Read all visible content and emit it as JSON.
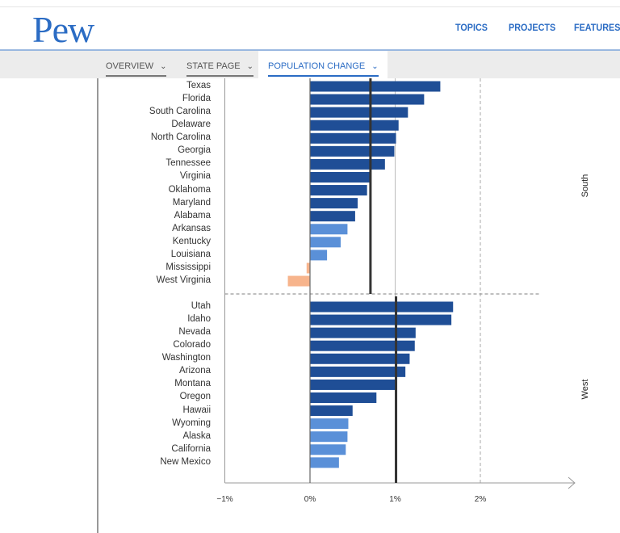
{
  "header": {
    "logo": "Pew",
    "nav": [
      "TOPICS",
      "PROJECTS",
      "FEATURES"
    ]
  },
  "subnav": {
    "tabs": [
      {
        "label": "OVERVIEW"
      },
      {
        "label": "STATE PAGE"
      },
      {
        "label": "POPULATION CHANGE",
        "active": true
      }
    ]
  },
  "colors": {
    "dark": "#1f4e96",
    "light": "#5a90d8",
    "negative": "#f7b48c",
    "accent": "#2b6cc4"
  },
  "chart_data": {
    "type": "bar",
    "orientation": "horizontal",
    "xlim": [
      -1,
      2.8
    ],
    "ticks": [
      {
        "v": -1,
        "label": "−1%"
      },
      {
        "v": 0,
        "label": "0%"
      },
      {
        "v": 1,
        "label": "1%"
      },
      {
        "v": 2,
        "label": "2%"
      }
    ],
    "groups": [
      {
        "name": "South",
        "average": 0.71,
        "states": [
          {
            "name": "Texas",
            "value": 1.53,
            "shade": "dark"
          },
          {
            "name": "Florida",
            "value": 1.34,
            "shade": "dark"
          },
          {
            "name": "South Carolina",
            "value": 1.15,
            "shade": "dark"
          },
          {
            "name": "Delaware",
            "value": 1.04,
            "shade": "dark"
          },
          {
            "name": "North Carolina",
            "value": 1.01,
            "shade": "dark"
          },
          {
            "name": "Georgia",
            "value": 0.99,
            "shade": "dark"
          },
          {
            "name": "Tennessee",
            "value": 0.88,
            "shade": "dark"
          },
          {
            "name": "Virginia",
            "value": 0.71,
            "shade": "dark"
          },
          {
            "name": "Oklahoma",
            "value": 0.67,
            "shade": "dark"
          },
          {
            "name": "Maryland",
            "value": 0.56,
            "shade": "dark"
          },
          {
            "name": "Alabama",
            "value": 0.53,
            "shade": "dark"
          },
          {
            "name": "Arkansas",
            "value": 0.44,
            "shade": "light"
          },
          {
            "name": "Kentucky",
            "value": 0.36,
            "shade": "light"
          },
          {
            "name": "Louisiana",
            "value": 0.2,
            "shade": "light"
          },
          {
            "name": "Mississippi",
            "value": -0.04,
            "shade": "negative"
          },
          {
            "name": "West Virginia",
            "value": -0.26,
            "shade": "negative"
          }
        ]
      },
      {
        "name": "West",
        "average": 1.01,
        "states": [
          {
            "name": "Utah",
            "value": 1.68,
            "shade": "dark"
          },
          {
            "name": "Idaho",
            "value": 1.66,
            "shade": "dark"
          },
          {
            "name": "Nevada",
            "value": 1.24,
            "shade": "dark"
          },
          {
            "name": "Colorado",
            "value": 1.23,
            "shade": "dark"
          },
          {
            "name": "Washington",
            "value": 1.17,
            "shade": "dark"
          },
          {
            "name": "Arizona",
            "value": 1.12,
            "shade": "dark"
          },
          {
            "name": "Montana",
            "value": 1.01,
            "shade": "dark"
          },
          {
            "name": "Oregon",
            "value": 0.78,
            "shade": "dark"
          },
          {
            "name": "Hawaii",
            "value": 0.5,
            "shade": "dark"
          },
          {
            "name": "Wyoming",
            "value": 0.45,
            "shade": "light"
          },
          {
            "name": "Alaska",
            "value": 0.44,
            "shade": "light"
          },
          {
            "name": "California",
            "value": 0.42,
            "shade": "light"
          },
          {
            "name": "New Mexico",
            "value": 0.34,
            "shade": "light"
          }
        ]
      }
    ]
  }
}
